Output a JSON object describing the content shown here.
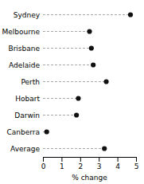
{
  "chart_data": {
    "type": "lollipop",
    "orientation": "horizontal",
    "categories": [
      "Sydney",
      "Melbourne",
      "Brisbane",
      "Adelaide",
      "Perth",
      "Hobart",
      "Darwin",
      "Canberra",
      "Average"
    ],
    "values": [
      4.7,
      2.5,
      2.6,
      2.7,
      3.4,
      1.9,
      1.8,
      0.2,
      3.3
    ],
    "xlim": [
      0,
      5
    ],
    "xticks": [
      0,
      1,
      2,
      3,
      4,
      5
    ],
    "xlabel": "% change",
    "color": "#111111",
    "marker": "circle",
    "line_style": "dashed",
    "grid": false
  }
}
